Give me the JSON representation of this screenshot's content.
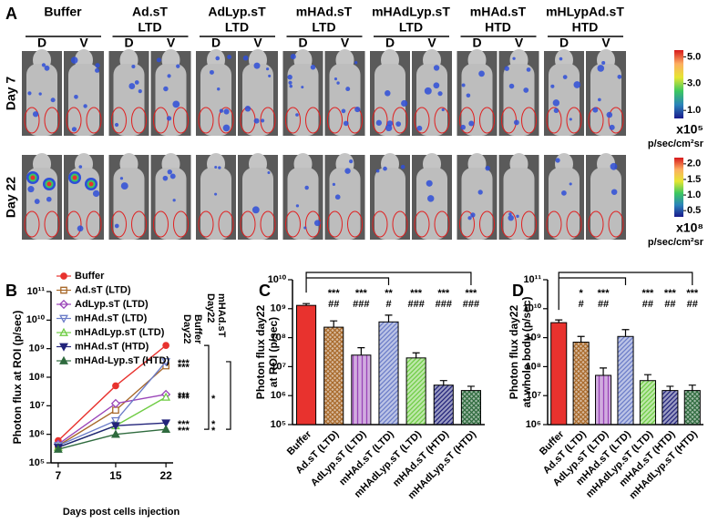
{
  "panel_labels": [
    "A",
    "B",
    "C",
    "D"
  ],
  "images_panel": {
    "groups": [
      {
        "name": "Buffer"
      },
      {
        "name": "Ad.sT",
        "dose": "LTD"
      },
      {
        "name": "AdLyp.sT",
        "dose": "LTD"
      },
      {
        "name": "mHAd.sT",
        "dose": "LTD"
      },
      {
        "name": "mHAdLyp.sT",
        "dose": "LTD"
      },
      {
        "name": "mHAd.sT",
        "dose": "HTD"
      },
      {
        "name": "mHLypAd.sT",
        "dose": "HTD"
      }
    ],
    "views": [
      "D",
      "V"
    ],
    "rows": [
      {
        "label": "Day 7",
        "colorbar": {
          "clim": [
            0.4,
            5.5
          ],
          "ticks": [
            {
              "value": 5,
              "label": "5.0"
            },
            {
              "value": 3,
              "label": "3.0"
            },
            {
              "value": 1,
              "label": "1.0"
            }
          ],
          "multiplier": "x10⁵",
          "unit": "p/sec/cm²sr"
        }
      },
      {
        "label": "Day 22",
        "colorbar": {
          "clim": [
            0.3,
            2.2
          ],
          "ticks": [
            {
              "value": 2,
              "label": "2.0"
            },
            {
              "value": 1.5,
              "label": "1.5"
            },
            {
              "value": 1,
              "label": "1.0"
            },
            {
              "value": 0.5,
              "label": "0.5"
            }
          ],
          "multiplier": "x10⁸",
          "unit": "p/sec/cm²sr"
        }
      }
    ]
  },
  "chart_data": [
    {
      "type": "line",
      "ylabel": "Photon flux at ROI (p/sec)",
      "xlabel": "Days post cells injection",
      "x": [
        7,
        15,
        22
      ],
      "xlim": [
        6,
        23
      ],
      "xticks": [
        7,
        15,
        22
      ],
      "ylog": true,
      "ylim": [
        100000.0,
        100000000000.0
      ],
      "yticks": [
        {
          "value": 100000.0,
          "label": "10⁵"
        },
        {
          "value": 1000000.0,
          "label": "10⁶"
        },
        {
          "value": 10000000.0,
          "label": "10⁷"
        },
        {
          "value": 100000000.0,
          "label": "10⁸"
        },
        {
          "value": 1000000000.0,
          "label": "10⁹"
        },
        {
          "value": 10000000000.0,
          "label": "10¹⁰"
        },
        {
          "value": 100000000000.0,
          "label": "10¹¹"
        }
      ],
      "series": [
        {
          "name": "Buffer",
          "color": "#e8322e",
          "marker": "circle",
          "filled": true,
          "values": [
            600000.0,
            50000000.0,
            1300000000.0
          ]
        },
        {
          "name": "Ad.sT (LTD)",
          "color": "#a8692a",
          "marker": "square",
          "filled": false,
          "values": [
            400000.0,
            7000000.0,
            250000000.0
          ]
        },
        {
          "name": "AdLyp.sT (LTD)",
          "color": "#9a44b8",
          "marker": "diamond",
          "filled": false,
          "values": [
            450000.0,
            12000000.0,
            25000000.0
          ]
        },
        {
          "name": "mHAd.sT (LTD)",
          "color": "#6b7cc8",
          "marker": "tri-down",
          "filled": false,
          "values": [
            400000.0,
            3000000.0,
            350000000.0
          ]
        },
        {
          "name": "mHAdLyp.sT (LTD)",
          "color": "#6fcc44",
          "marker": "tri-up",
          "filled": false,
          "values": [
            350000.0,
            2000000.0,
            20000000.0
          ]
        },
        {
          "name": "mHAd.sT (HTD)",
          "color": "#22237a",
          "marker": "tri-down",
          "filled": true,
          "values": [
            350000.0,
            2000000.0,
            2500000.0
          ]
        },
        {
          "name": "mHAd-Lyp.sT (HTD)",
          "color": "#2f6b3e",
          "marker": "tri-up",
          "filled": true,
          "values": [
            300000.0,
            1000000.0,
            1500000.0
          ]
        }
      ],
      "comparison_labels": [
        {
          "lines": [
            "Day22",
            "Buffer"
          ],
          "color": "#e8322e"
        },
        {
          "lines": [
            "Day22",
            "mHAd.sT"
          ],
          "color": "#6b7cc8"
        }
      ],
      "sig_vs_buffer": [
        null,
        "***",
        "***",
        "***",
        "***",
        "***",
        "***"
      ],
      "sig_vs_mhad": [
        null,
        null,
        null,
        null,
        "*",
        "*",
        "*"
      ]
    },
    {
      "type": "bar",
      "ylabel": [
        "Photon flux day22",
        "at ROI (p/sec)"
      ],
      "categories": [
        "Buffer",
        "Ad.sT (LTD)",
        "AdLyp.sT (LTD)",
        "mHAd.sT (LTD)",
        "mHAdLyp.sT (LTD)",
        "mHAd.sT (HTD)",
        "mHAdLyp.sT (HTD)"
      ],
      "values": [
        1300000000.0,
        230000000.0,
        25000000.0,
        350000000.0,
        20000000.0,
        2300000.0,
        1500000.0
      ],
      "errors": [
        200000000.0,
        150000000.0,
        20000000.0,
        250000000.0,
        10000000.0,
        1000000.0,
        600000.0
      ],
      "colors": [
        "#e8322e",
        "#a8692a",
        "#9a44b8",
        "#6b7cc8",
        "#6fcc44",
        "#22237a",
        "#2f6b3e"
      ],
      "patterns": [
        "solid",
        "crosshatch",
        "vertical",
        "diagonal",
        "diagonal",
        "diagonal",
        "crosshatch"
      ],
      "ylog": true,
      "ylim": [
        100000.0,
        10000000000.0
      ],
      "yticks": [
        {
          "value": 100000.0,
          "label": "10⁵"
        },
        {
          "value": 1000000.0,
          "label": "10⁶"
        },
        {
          "value": 10000000.0,
          "label": "10⁷"
        },
        {
          "value": 100000000.0,
          "label": "10⁸"
        },
        {
          "value": 1000000000.0,
          "label": "10⁹"
        },
        {
          "value": 10000000000.0,
          "label": "10¹⁰"
        }
      ],
      "sig_stars": [
        null,
        "***",
        "***",
        "**",
        "***",
        "***",
        "***"
      ],
      "sig_hashes": [
        null,
        "##",
        "###",
        "#",
        "###",
        "###",
        "###"
      ]
    },
    {
      "type": "bar",
      "ylabel": [
        "Photon flux day22",
        "at whole body (p/sec)"
      ],
      "categories": [
        "Buffer",
        "Ad.sT (LTD)",
        "AdLyp.sT (LTD)",
        "mHAd.sT (LTD)",
        "mHAdLyp.sT (LTD)",
        "mHAd.sT (HTD)",
        "mHAdLyp.sT (HTD)"
      ],
      "values": [
        3300000000.0,
        700000000.0,
        50000000.0,
        1100000000.0,
        33000000.0,
        15000000.0,
        15000000.0
      ],
      "errors": [
        800000000.0,
        400000000.0,
        40000000.0,
        800000000.0,
        20000000.0,
        6000000.0,
        8000000.0
      ],
      "colors": [
        "#e8322e",
        "#a8692a",
        "#9a44b8",
        "#6b7cc8",
        "#6fcc44",
        "#22237a",
        "#2f6b3e"
      ],
      "patterns": [
        "solid",
        "crosshatch",
        "vertical",
        "diagonal",
        "diagonal",
        "diagonal",
        "crosshatch"
      ],
      "ylog": true,
      "ylim": [
        1000000.0,
        100000000000.0
      ],
      "yticks": [
        {
          "value": 1000000.0,
          "label": "10⁶"
        },
        {
          "value": 10000000.0,
          "label": "10⁷"
        },
        {
          "value": 100000000.0,
          "label": "10⁸"
        },
        {
          "value": 1000000000.0,
          "label": "10⁹"
        },
        {
          "value": 10000000000.0,
          "label": "10¹⁰"
        },
        {
          "value": 100000000000.0,
          "label": "10¹¹"
        }
      ],
      "sig_stars": [
        null,
        "*",
        "***",
        null,
        "***",
        "***",
        "***"
      ],
      "sig_hashes": [
        null,
        "#",
        "##",
        null,
        "##",
        "##",
        "##"
      ]
    }
  ]
}
